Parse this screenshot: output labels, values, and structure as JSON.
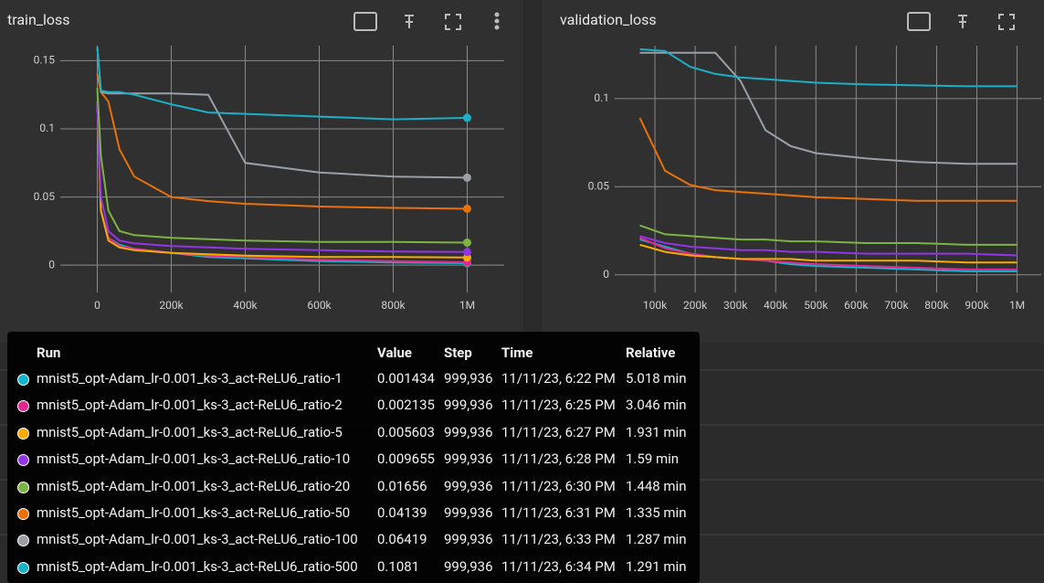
{
  "chart_data": [
    {
      "type": "line",
      "title": "train_loss",
      "x": [
        0,
        10000,
        30000,
        60000,
        100000,
        200000,
        300000,
        400000,
        600000,
        800000,
        999936
      ],
      "xlim": [
        -100000,
        1100000
      ],
      "xticks": [
        0,
        {
          "value": 200000,
          "label": "200k"
        },
        {
          "value": 400000,
          "label": "400k"
        },
        {
          "value": 600000,
          "label": "600k"
        },
        {
          "value": 800000,
          "label": "800k"
        },
        {
          "value": 1000000,
          "label": "1M"
        }
      ],
      "ylim": [
        -0.02,
        0.161
      ],
      "yticks": [
        0,
        0.05,
        0.1,
        0.15
      ],
      "grid": true,
      "end_markers": true,
      "series": [
        {
          "color": "#12b5cb",
          "values": [
            0.12,
            0.04,
            0.02,
            0.015,
            0.012,
            0.009,
            0.006,
            0.005,
            0.003,
            0.002,
            0.001434
          ]
        },
        {
          "color": "#e52592",
          "values": [
            0.12,
            0.04,
            0.02,
            0.014,
            0.012,
            0.009,
            0.007,
            0.006,
            0.004,
            0.003,
            0.002135
          ]
        },
        {
          "color": "#f9ab00",
          "values": [
            0.12,
            0.04,
            0.018,
            0.013,
            0.011,
            0.009,
            0.008,
            0.007,
            0.006,
            0.006,
            0.005603
          ]
        },
        {
          "color": "#9334e6",
          "values": [
            0.12,
            0.05,
            0.025,
            0.018,
            0.016,
            0.014,
            0.013,
            0.012,
            0.011,
            0.01,
            0.009655
          ]
        },
        {
          "color": "#7cb342",
          "values": [
            0.13,
            0.08,
            0.04,
            0.025,
            0.022,
            0.02,
            0.019,
            0.018,
            0.017,
            0.017,
            0.01656
          ]
        },
        {
          "color": "#e8710a",
          "values": [
            0.14,
            0.127,
            0.12,
            0.085,
            0.065,
            0.05,
            0.047,
            0.045,
            0.043,
            0.042,
            0.04139
          ]
        },
        {
          "color": "#9aa0a6",
          "values": [
            0.16,
            0.127,
            0.126,
            0.126,
            0.126,
            0.126,
            0.125,
            0.075,
            0.068,
            0.065,
            0.06419
          ]
        },
        {
          "color": "#1ab0c8",
          "values": [
            0.16,
            0.128,
            0.127,
            0.127,
            0.125,
            0.118,
            0.112,
            0.111,
            0.109,
            0.107,
            0.1081
          ]
        }
      ]
    },
    {
      "type": "line",
      "title": "validation_loss",
      "x": [
        62500,
        125000,
        187500,
        250000,
        312500,
        375000,
        437500,
        500000,
        625000,
        750000,
        875000,
        1000000
      ],
      "xlim": [
        0,
        1060000
      ],
      "xticks": [
        {
          "value": 100000,
          "label": "100k"
        },
        {
          "value": 200000,
          "label": "200k"
        },
        {
          "value": 300000,
          "label": "300k"
        },
        {
          "value": 400000,
          "label": "400k"
        },
        {
          "value": 500000,
          "label": "500k"
        },
        {
          "value": 600000,
          "label": "600k"
        },
        {
          "value": 700000,
          "label": "700k"
        },
        {
          "value": 800000,
          "label": "800k"
        },
        {
          "value": 900000,
          "label": "900k"
        },
        {
          "value": 1000000,
          "label": "1M"
        }
      ],
      "ylim": [
        -0.01,
        0.13
      ],
      "yticks": [
        0,
        0.05,
        0.1
      ],
      "grid": true,
      "end_markers": false,
      "series": [
        {
          "color": "#12b5cb",
          "values": [
            0.02,
            0.016,
            0.012,
            0.01,
            0.009,
            0.008,
            0.006,
            0.005,
            0.004,
            0.003,
            0.002,
            0.002
          ]
        },
        {
          "color": "#e52592",
          "values": [
            0.021,
            0.015,
            0.012,
            0.01,
            0.009,
            0.008,
            0.007,
            0.006,
            0.005,
            0.004,
            0.003,
            0.003
          ]
        },
        {
          "color": "#f9ab00",
          "values": [
            0.017,
            0.013,
            0.011,
            0.01,
            0.009,
            0.009,
            0.009,
            0.008,
            0.008,
            0.008,
            0.007,
            0.007
          ]
        },
        {
          "color": "#9334e6",
          "values": [
            0.022,
            0.018,
            0.016,
            0.015,
            0.014,
            0.014,
            0.013,
            0.013,
            0.012,
            0.012,
            0.012,
            0.011
          ]
        },
        {
          "color": "#7cb342",
          "values": [
            0.028,
            0.023,
            0.022,
            0.021,
            0.02,
            0.02,
            0.019,
            0.019,
            0.018,
            0.018,
            0.017,
            0.017
          ]
        },
        {
          "color": "#e8710a",
          "values": [
            0.089,
            0.059,
            0.051,
            0.048,
            0.047,
            0.046,
            0.045,
            0.044,
            0.043,
            0.042,
            0.042,
            0.042
          ]
        },
        {
          "color": "#9aa0a6",
          "values": [
            0.126,
            0.126,
            0.126,
            0.126,
            0.11,
            0.082,
            0.073,
            0.069,
            0.066,
            0.064,
            0.063,
            0.063
          ]
        },
        {
          "color": "#1ab0c8",
          "values": [
            0.128,
            0.127,
            0.118,
            0.114,
            0.112,
            0.111,
            0.11,
            0.109,
            0.108,
            0.1075,
            0.107,
            0.107
          ]
        }
      ]
    }
  ],
  "tooltip": {
    "header": [
      "Run",
      "Value",
      "Step",
      "Time",
      "Relative"
    ],
    "rows": [
      [
        "mnist5_opt-Adam_lr-0.001_ks-3_act-ReLU6_ratio-1",
        "0.001434",
        "999,936",
        "11/11/23, 6:22 PM",
        "5.018 min"
      ],
      [
        "mnist5_opt-Adam_lr-0.001_ks-3_act-ReLU6_ratio-2",
        "0.002135",
        "999,936",
        "11/11/23, 6:25 PM",
        "3.046 min"
      ],
      [
        "mnist5_opt-Adam_lr-0.001_ks-3_act-ReLU6_ratio-5",
        "0.005603",
        "999,936",
        "11/11/23, 6:27 PM",
        "1.931 min"
      ],
      [
        "mnist5_opt-Adam_lr-0.001_ks-3_act-ReLU6_ratio-10",
        "0.009655",
        "999,936",
        "11/11/23, 6:28 PM",
        "1.59 min"
      ],
      [
        "mnist5_opt-Adam_lr-0.001_ks-3_act-ReLU6_ratio-20",
        "0.01656",
        "999,936",
        "11/11/23, 6:30 PM",
        "1.448 min"
      ],
      [
        "mnist5_opt-Adam_lr-0.001_ks-3_act-ReLU6_ratio-50",
        "0.04139",
        "999,936",
        "11/11/23, 6:31 PM",
        "1.335 min"
      ],
      [
        "mnist5_opt-Adam_lr-0.001_ks-3_act-ReLU6_ratio-100",
        "0.06419",
        "999,936",
        "11/11/23, 6:33 PM",
        "1.287 min"
      ],
      [
        "mnist5_opt-Adam_lr-0.001_ks-3_act-ReLU6_ratio-500",
        "0.1081",
        "999,936",
        "11/11/23, 6:34 PM",
        "1.291 min"
      ]
    ]
  }
}
